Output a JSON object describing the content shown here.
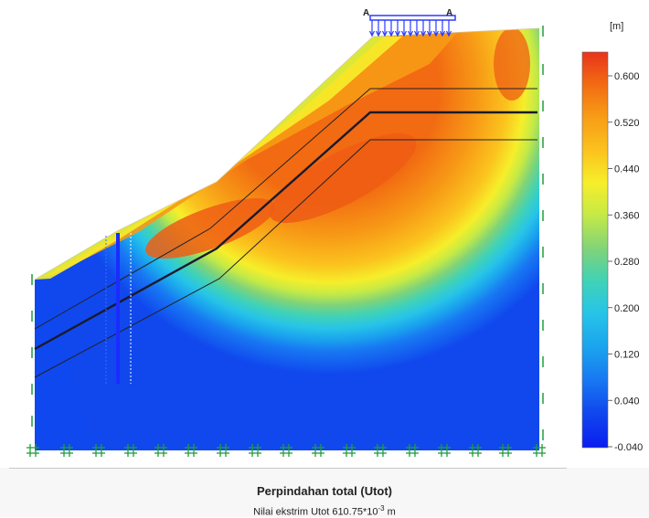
{
  "figure": {
    "load_labels": [
      "A",
      "A"
    ],
    "unit_label": "[m]",
    "legend": {
      "ticks": [
        "0.600",
        "0.520",
        "0.440",
        "0.360",
        "0.280",
        "0.200",
        "0.120",
        "0.040",
        "-0.040"
      ],
      "colors": [
        "#e8331a",
        "#f26a12",
        "#f79a16",
        "#fbc31e",
        "#f6ee2a",
        "#c6ea45",
        "#7ed37a",
        "#3fd2b8",
        "#27c4e8",
        "#1aa2ee",
        "#1877f2",
        "#1048ee",
        "#0a1df0"
      ]
    }
  },
  "footer": {
    "title": "Perpindahan total (Utot)",
    "subtitle_prefix": "Nilai ekstrim Utot 610.75*10",
    "subtitle_exp": "-3",
    "subtitle_unit": " m"
  }
}
